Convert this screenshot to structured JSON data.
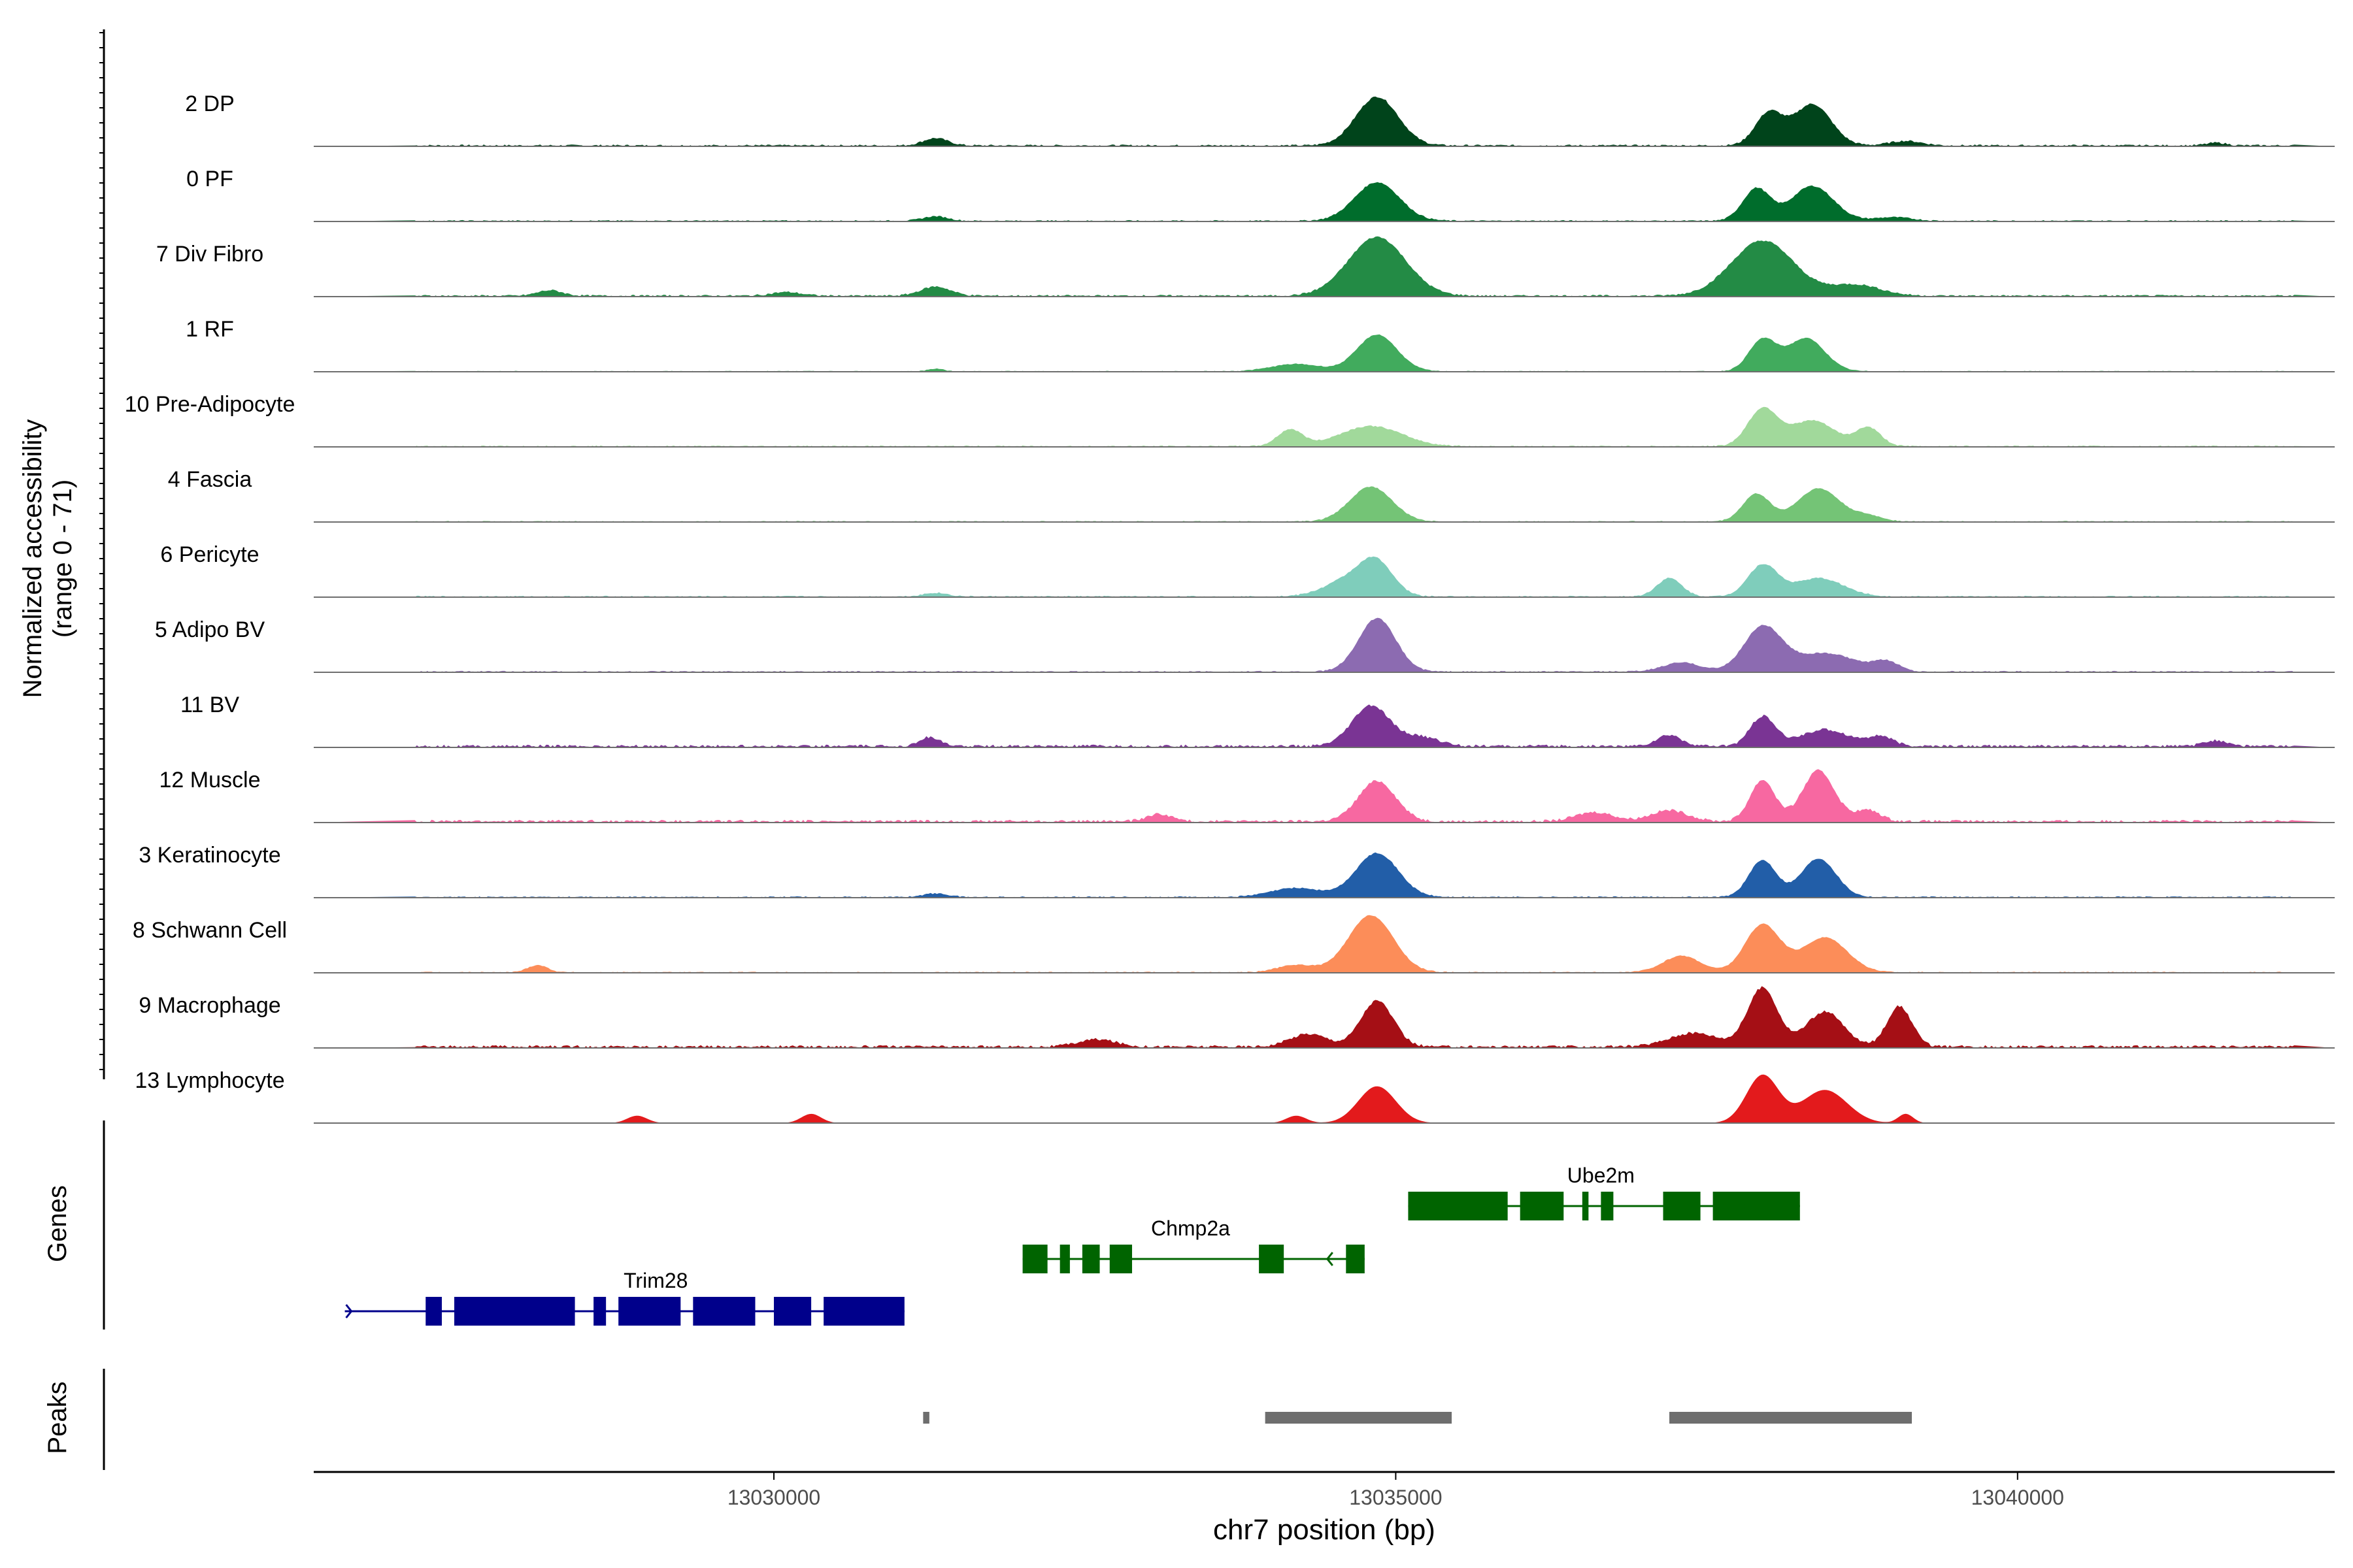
{
  "chart_data": {
    "type": "area",
    "title": "",
    "xlabel": "chr7 position (bp)",
    "ylabel_line1": "Normalized accessibility",
    "ylabel_line2": "(range 0 - 71)",
    "y_range": [
      0,
      71
    ],
    "xlim": [
      13026300,
      13042550
    ],
    "x_ticks": [
      13030000,
      13035000,
      13040000
    ],
    "x_tick_labels": [
      "13030000",
      "13035000",
      "13040000"
    ],
    "tracks": [
      {
        "name": "2 DP",
        "color": "#00441b",
        "peaks": [
          [
            13034850,
            53,
            170
          ],
          [
            13038000,
            35,
            110
          ],
          [
            13038350,
            45,
            150
          ],
          [
            13031300,
            8,
            100
          ],
          [
            13041600,
            3,
            80
          ],
          [
            13039100,
            5,
            130
          ]
        ],
        "noise": 2
      },
      {
        "name": "0 PF",
        "color": "#006d2c",
        "peaks": [
          [
            13034850,
            42,
            180
          ],
          [
            13037900,
            35,
            110
          ],
          [
            13038350,
            38,
            170
          ],
          [
            13031300,
            5,
            100
          ],
          [
            13039000,
            4,
            150
          ]
        ],
        "noise": 1.5
      },
      {
        "name": "7 Div Fibro",
        "color": "#238b45",
        "peaks": [
          [
            13034850,
            64,
            230
          ],
          [
            13037950,
            60,
            250
          ],
          [
            13038700,
            12,
            200
          ],
          [
            13031300,
            10,
            120
          ],
          [
            13028200,
            6,
            100
          ],
          [
            13030100,
            4,
            120
          ]
        ],
        "noise": 2
      },
      {
        "name": "1 RF",
        "color": "#41ab5d",
        "peaks": [
          [
            13034850,
            40,
            160
          ],
          [
            13037950,
            34,
            110
          ],
          [
            13038300,
            36,
            150
          ],
          [
            13034200,
            8,
            200
          ],
          [
            13031300,
            3,
            60
          ]
        ],
        "noise": 1
      },
      {
        "name": "10 Pre-Adipocyte",
        "color": "#a1d99b",
        "peaks": [
          [
            13034150,
            18,
            100
          ],
          [
            13034800,
            22,
            250
          ],
          [
            13037950,
            40,
            120
          ],
          [
            13038350,
            28,
            180
          ],
          [
            13038800,
            20,
            100
          ]
        ],
        "noise": 1.5
      },
      {
        "name": "4 Fascia",
        "color": "#74c476",
        "peaks": [
          [
            13034800,
            38,
            170
          ],
          [
            13037900,
            30,
            110
          ],
          [
            13038400,
            36,
            170
          ],
          [
            13038800,
            6,
            120
          ]
        ],
        "noise": 1.2
      },
      {
        "name": "6 Pericyte",
        "color": "#7fcdbb",
        "peaks": [
          [
            13034650,
            20,
            200
          ],
          [
            13034850,
            30,
            130
          ],
          [
            13037200,
            20,
            100
          ],
          [
            13037950,
            34,
            120
          ],
          [
            13038400,
            20,
            200
          ],
          [
            13031300,
            4,
            100
          ]
        ],
        "noise": 1.5
      },
      {
        "name": "5 Adipo BV",
        "color": "#8c6bb1",
        "peaks": [
          [
            13034850,
            58,
            150
          ],
          [
            13037950,
            48,
            150
          ],
          [
            13038450,
            20,
            250
          ],
          [
            13037300,
            10,
            150
          ],
          [
            13038950,
            10,
            100
          ]
        ],
        "noise": 1.5
      },
      {
        "name": "11 BV",
        "color": "#7a3494",
        "peaks": [
          [
            13034800,
            44,
            150
          ],
          [
            13035200,
            10,
            150
          ],
          [
            13037950,
            32,
            100
          ],
          [
            13038450,
            18,
            200
          ],
          [
            13031250,
            10,
            80
          ],
          [
            13038900,
            10,
            100
          ],
          [
            13041600,
            6,
            100
          ],
          [
            13037200,
            12,
            100
          ]
        ],
        "noise": 3
      },
      {
        "name": "12 Muscle",
        "color": "#f768a1",
        "peaks": [
          [
            13034850,
            44,
            150
          ],
          [
            13037950,
            45,
            100
          ],
          [
            13038400,
            55,
            130
          ],
          [
            13038800,
            12,
            100
          ],
          [
            13037200,
            12,
            150
          ],
          [
            13033100,
            8,
            100
          ],
          [
            13036600,
            10,
            150
          ]
        ],
        "noise": 3
      },
      {
        "name": "3 Keratinocyte",
        "color": "#225ea8",
        "peaks": [
          [
            13034850,
            48,
            170
          ],
          [
            13037950,
            40,
            110
          ],
          [
            13038400,
            42,
            140
          ],
          [
            13034200,
            10,
            200
          ],
          [
            13031300,
            4,
            100
          ]
        ],
        "noise": 1.5
      },
      {
        "name": "8 Schwann Cell",
        "color": "#fc8d59",
        "peaks": [
          [
            13034800,
            62,
            180
          ],
          [
            13037950,
            52,
            140
          ],
          [
            13038450,
            38,
            180
          ],
          [
            13037300,
            18,
            150
          ],
          [
            13034200,
            8,
            150
          ],
          [
            13028100,
            8,
            80
          ]
        ],
        "noise": 1.2
      },
      {
        "name": "9 Macrophage",
        "color": "#a50f15",
        "peaks": [
          [
            13034850,
            50,
            130
          ],
          [
            13034300,
            14,
            150
          ],
          [
            13037950,
            64,
            120
          ],
          [
            13038450,
            38,
            150
          ],
          [
            13039050,
            44,
            100
          ],
          [
            13037400,
            15,
            200
          ],
          [
            13032600,
            8,
            150
          ]
        ],
        "noise": 3
      },
      {
        "name": "13 Lymphocyte",
        "color": "#e31a1c",
        "peaks": [
          [
            13034850,
            40,
            150
          ],
          [
            13037950,
            52,
            130
          ],
          [
            13038450,
            36,
            180
          ],
          [
            13034200,
            8,
            80
          ],
          [
            13028900,
            8,
            80
          ],
          [
            13039100,
            10,
            60
          ],
          [
            13030300,
            10,
            80
          ]
        ],
        "noise": 0
      }
    ],
    "genes_label": "Genes",
    "genes": [
      {
        "name": "Trim28",
        "color": "#00008b",
        "strand": "+",
        "start": 13026550,
        "end": 13031050,
        "exons": [
          [
            13027200,
            13027330
          ],
          [
            13027430,
            13028400
          ],
          [
            13028550,
            13028650
          ],
          [
            13028750,
            13029250
          ],
          [
            13029350,
            13029850
          ],
          [
            13030000,
            13030300
          ],
          [
            13030400,
            13031050
          ]
        ]
      },
      {
        "name": "Chmp2a",
        "color": "#006400",
        "strand": "-",
        "start": 13032000,
        "end": 13034750,
        "exons": [
          [
            13032000,
            13032200
          ],
          [
            13032300,
            13032380
          ],
          [
            13032480,
            13032620
          ],
          [
            13032700,
            13032880
          ],
          [
            13033900,
            13034100
          ],
          [
            13034600,
            13034750
          ]
        ]
      },
      {
        "name": "Ube2m",
        "color": "#006400",
        "strand": "-",
        "start": 13035100,
        "end": 13038250,
        "exons": [
          [
            13035100,
            13035900
          ],
          [
            13036000,
            13036350
          ],
          [
            13036500,
            13036550
          ],
          [
            13036650,
            13036750
          ],
          [
            13037150,
            13037450
          ],
          [
            13037550,
            13038250
          ]
        ]
      }
    ],
    "peaks_label": "Peaks",
    "peak_regions": [
      [
        13031200,
        13031250
      ],
      [
        13033950,
        13035450
      ],
      [
        13037200,
        13039150
      ]
    ]
  },
  "colors": {
    "axis": "#000000",
    "track_baseline": "#6e6e6e",
    "peak_bar": "#6e6e6e",
    "tick_label": "#4d4d4d"
  }
}
